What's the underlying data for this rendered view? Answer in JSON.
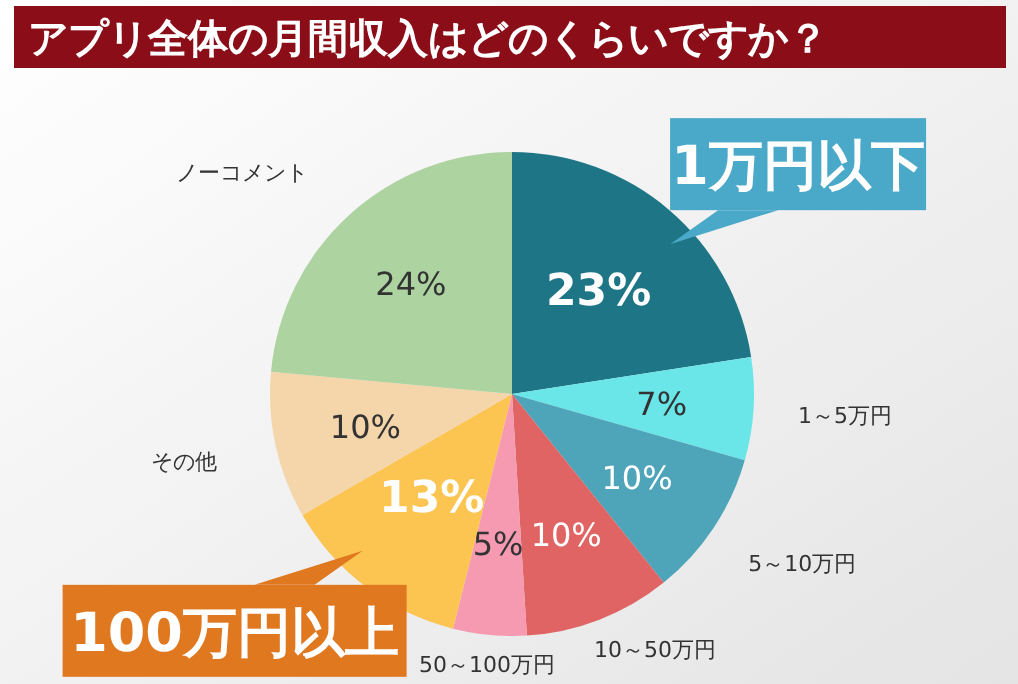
{
  "chart_data": {
    "type": "pie",
    "title": "アプリ全体の月間収入はどのくらいですか？",
    "categories": [
      null,
      "1～5万円",
      "5～10万円",
      "10～50万円",
      "50～100万円",
      null,
      "その他",
      "ノーコメント"
    ],
    "values": [
      23,
      7,
      10,
      10,
      5,
      13,
      10,
      24
    ],
    "value_labels": [
      "23%",
      "7%",
      "10%",
      "10%",
      "5%",
      "13%",
      "10%",
      "24%"
    ],
    "colors": [
      "#1e7585",
      "#6ae6e8",
      "#4ea4b8",
      "#e06464",
      "#f59ab0",
      "#fcc450",
      "#f5d5aa",
      "#acd3a0"
    ],
    "annotations": [
      "1万円以下",
      "100万円以上"
    ]
  }
}
